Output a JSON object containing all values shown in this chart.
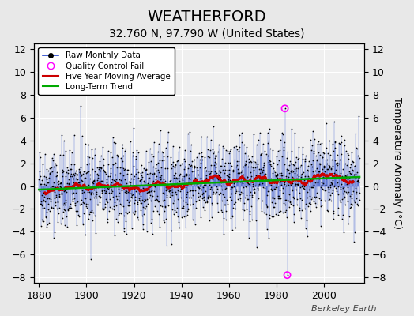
{
  "title": "WEATHERFORD",
  "subtitle": "32.760 N, 97.790 W (United States)",
  "ylabel": "Temperature Anomaly (°C)",
  "credit": "Berkeley Earth",
  "xlim": [
    1878,
    2017
  ],
  "ylim": [
    -8.5,
    12.5
  ],
  "yticks": [
    -8,
    -6,
    -4,
    -2,
    0,
    2,
    4,
    6,
    8,
    10,
    12
  ],
  "xticks": [
    1880,
    1900,
    1920,
    1940,
    1960,
    1980,
    2000
  ],
  "bg_color": "#e8e8e8",
  "plot_bg": "#f0f0f0",
  "line_color_raw": "#2244cc",
  "dot_color_raw": "#000000",
  "line_color_ma": "#cc0000",
  "line_color_trend": "#00aa00",
  "qc_color": "#ff00ff",
  "grid_color": "#ffffff",
  "title_fontsize": 14,
  "subtitle_fontsize": 10,
  "label_fontsize": 9,
  "tick_fontsize": 9,
  "years_start": 1880,
  "years_end": 2014,
  "qc_high_year": 1983,
  "qc_high_month": 6,
  "qc_high_val": 6.8,
  "qc_low_year": 1984,
  "qc_low_month": 6,
  "qc_low_val": -7.8
}
